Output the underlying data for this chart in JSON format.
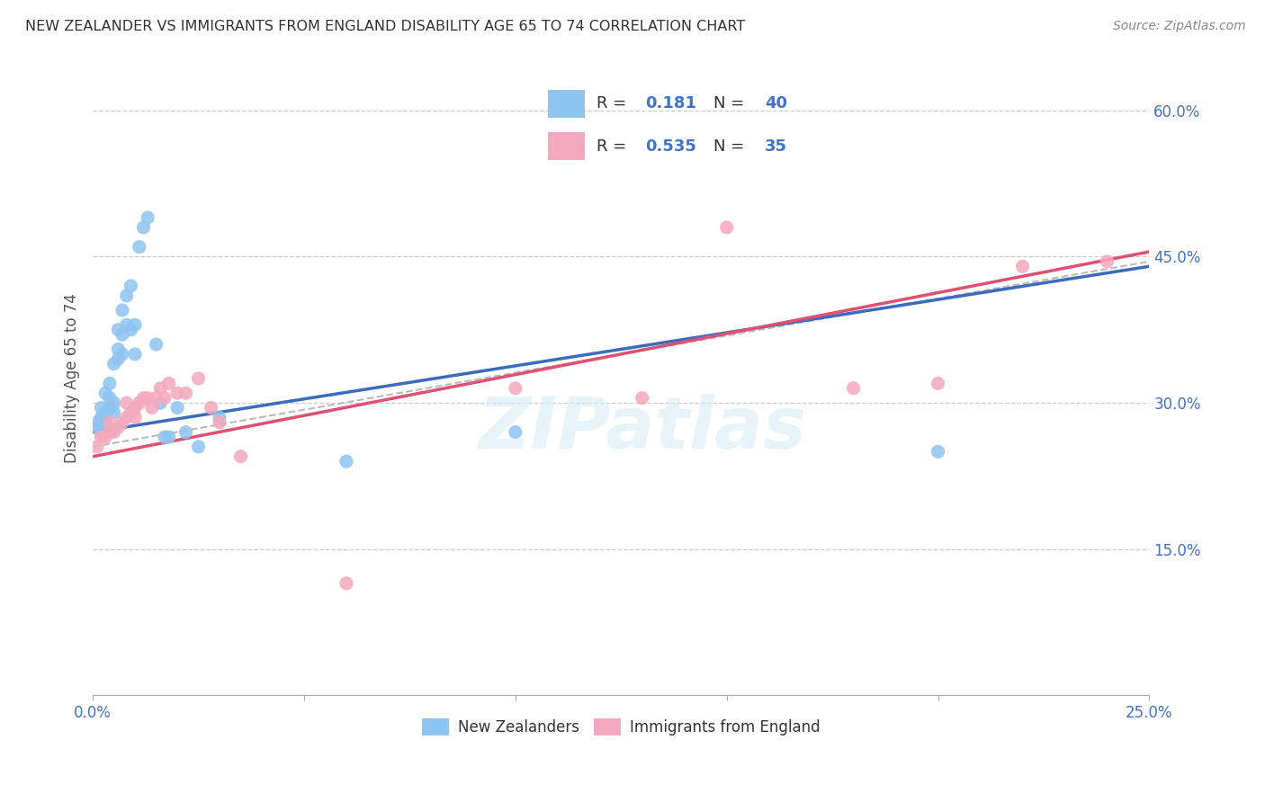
{
  "title": "NEW ZEALANDER VS IMMIGRANTS FROM ENGLAND DISABILITY AGE 65 TO 74 CORRELATION CHART",
  "source": "Source: ZipAtlas.com",
  "ylabel": "Disability Age 65 to 74",
  "xlim": [
    0.0,
    0.25
  ],
  "ylim": [
    0.0,
    0.65
  ],
  "ytick_positions": [
    0.15,
    0.3,
    0.45,
    0.6
  ],
  "ytick_labels": [
    "15.0%",
    "30.0%",
    "45.0%",
    "60.0%"
  ],
  "xtick_positions": [
    0.0,
    0.05,
    0.1,
    0.15,
    0.2,
    0.25
  ],
  "xtick_labels": [
    "0.0%",
    "",
    "",
    "",
    "",
    "25.0%"
  ],
  "blue_R": 0.181,
  "blue_N": 40,
  "pink_R": 0.535,
  "pink_N": 35,
  "blue_color": "#8ec4f0",
  "pink_color": "#f4a8be",
  "blue_line_color": "#3a6bbf",
  "pink_line_color": "#e05070",
  "dashed_line_color": "#bbbbbb",
  "legend_label_blue": "New Zealanders",
  "legend_label_pink": "Immigrants from England",
  "watermark": "ZIPatlas",
  "blue_scatter_x": [
    0.001,
    0.001,
    0.002,
    0.002,
    0.002,
    0.003,
    0.003,
    0.003,
    0.004,
    0.004,
    0.004,
    0.005,
    0.005,
    0.005,
    0.006,
    0.006,
    0.006,
    0.007,
    0.007,
    0.007,
    0.008,
    0.008,
    0.009,
    0.009,
    0.01,
    0.01,
    0.011,
    0.012,
    0.013,
    0.015,
    0.016,
    0.017,
    0.018,
    0.02,
    0.022,
    0.025,
    0.03,
    0.06,
    0.1,
    0.2
  ],
  "blue_scatter_y": [
    0.275,
    0.28,
    0.27,
    0.285,
    0.295,
    0.28,
    0.29,
    0.31,
    0.295,
    0.305,
    0.32,
    0.29,
    0.3,
    0.34,
    0.345,
    0.355,
    0.375,
    0.35,
    0.37,
    0.395,
    0.38,
    0.41,
    0.375,
    0.42,
    0.38,
    0.35,
    0.46,
    0.48,
    0.49,
    0.36,
    0.3,
    0.265,
    0.265,
    0.295,
    0.27,
    0.255,
    0.285,
    0.24,
    0.27,
    0.25
  ],
  "pink_scatter_x": [
    0.001,
    0.002,
    0.003,
    0.004,
    0.004,
    0.005,
    0.006,
    0.007,
    0.008,
    0.008,
    0.009,
    0.01,
    0.01,
    0.011,
    0.012,
    0.013,
    0.014,
    0.015,
    0.016,
    0.017,
    0.018,
    0.02,
    0.022,
    0.025,
    0.028,
    0.03,
    0.035,
    0.06,
    0.1,
    0.13,
    0.15,
    0.18,
    0.2,
    0.22,
    0.24
  ],
  "pink_scatter_y": [
    0.255,
    0.265,
    0.265,
    0.27,
    0.28,
    0.27,
    0.275,
    0.28,
    0.285,
    0.3,
    0.29,
    0.285,
    0.295,
    0.3,
    0.305,
    0.305,
    0.295,
    0.305,
    0.315,
    0.305,
    0.32,
    0.31,
    0.31,
    0.325,
    0.295,
    0.28,
    0.245,
    0.115,
    0.315,
    0.305,
    0.48,
    0.315,
    0.32,
    0.44,
    0.445
  ],
  "blue_line_x0": 0.0,
  "blue_line_y0": 0.27,
  "blue_line_x1": 0.25,
  "blue_line_y1": 0.44,
  "pink_line_x0": 0.0,
  "pink_line_y0": 0.245,
  "pink_line_x1": 0.25,
  "pink_line_y1": 0.455,
  "dash_line_x0": 0.0,
  "dash_line_y0": 0.255,
  "dash_line_x1": 0.25,
  "dash_line_y1": 0.445
}
